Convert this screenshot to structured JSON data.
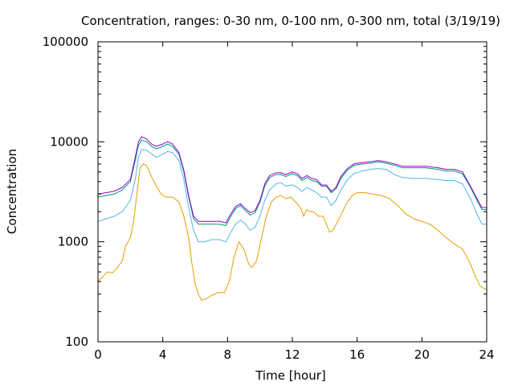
{
  "chart_data": {
    "type": "line",
    "title": "Concentration, ranges: 0-30 nm, 0-100 nm, 0-300 nm, total (3/19/19)",
    "xlabel": "Time [hour]",
    "ylabel": "Concentration",
    "xlim": [
      0,
      24
    ],
    "ylim": [
      100,
      100000
    ],
    "yscale": "log",
    "grid": false,
    "legend": "none",
    "xticks": [
      0,
      4,
      8,
      12,
      16,
      20,
      24
    ],
    "xtick_labels": [
      "0",
      "4",
      "8",
      "12",
      "16",
      "20",
      "24"
    ],
    "yticks": [
      100,
      1000,
      10000,
      100000
    ],
    "ytick_labels": [
      "100",
      "1000",
      "10000",
      "100000"
    ],
    "series": [
      {
        "color": "#e69f00",
        "points": [
          [
            0,
            400
          ],
          [
            0.3,
            450
          ],
          [
            0.6,
            500
          ],
          [
            0.9,
            490
          ],
          [
            1.2,
            550
          ],
          [
            1.5,
            650
          ],
          [
            1.7,
            900
          ],
          [
            2.0,
            1100
          ],
          [
            2.2,
            1600
          ],
          [
            2.4,
            3000
          ],
          [
            2.6,
            5500
          ],
          [
            2.8,
            6000
          ],
          [
            3.0,
            5800
          ],
          [
            3.3,
            4500
          ],
          [
            3.6,
            3600
          ],
          [
            3.9,
            3000
          ],
          [
            4.2,
            2800
          ],
          [
            4.6,
            2800
          ],
          [
            5.0,
            2500
          ],
          [
            5.3,
            1800
          ],
          [
            5.6,
            1100
          ],
          [
            5.8,
            600
          ],
          [
            6.0,
            380
          ],
          [
            6.2,
            300
          ],
          [
            6.4,
            260
          ],
          [
            6.7,
            270
          ],
          [
            7.0,
            290
          ],
          [
            7.4,
            310
          ],
          [
            7.8,
            310
          ],
          [
            8.1,
            400
          ],
          [
            8.4,
            700
          ],
          [
            8.7,
            1000
          ],
          [
            9.0,
            850
          ],
          [
            9.3,
            600
          ],
          [
            9.5,
            550
          ],
          [
            9.8,
            650
          ],
          [
            10.1,
            1100
          ],
          [
            10.4,
            1800
          ],
          [
            10.7,
            2500
          ],
          [
            11.0,
            2800
          ],
          [
            11.3,
            2900
          ],
          [
            11.6,
            2700
          ],
          [
            11.9,
            2800
          ],
          [
            12.2,
            2500
          ],
          [
            12.5,
            2200
          ],
          [
            12.7,
            1800
          ],
          [
            12.9,
            2100
          ],
          [
            13.1,
            2000
          ],
          [
            13.3,
            2000
          ],
          [
            13.6,
            1800
          ],
          [
            13.9,
            1800
          ],
          [
            14.1,
            1500
          ],
          [
            14.3,
            1250
          ],
          [
            14.5,
            1300
          ],
          [
            14.8,
            1600
          ],
          [
            15.1,
            2000
          ],
          [
            15.4,
            2500
          ],
          [
            15.7,
            2900
          ],
          [
            16.0,
            3100
          ],
          [
            16.5,
            3100
          ],
          [
            17.0,
            3000
          ],
          [
            17.5,
            2900
          ],
          [
            18.0,
            2700
          ],
          [
            18.5,
            2300
          ],
          [
            19.0,
            1900
          ],
          [
            19.5,
            1700
          ],
          [
            20.0,
            1600
          ],
          [
            20.5,
            1500
          ],
          [
            21.0,
            1300
          ],
          [
            21.5,
            1100
          ],
          [
            22.0,
            950
          ],
          [
            22.5,
            850
          ],
          [
            23.0,
            600
          ],
          [
            23.3,
            450
          ],
          [
            23.6,
            360
          ],
          [
            24.0,
            330
          ]
        ]
      },
      {
        "color": "#56b4e9",
        "points": [
          [
            0,
            1600
          ],
          [
            0.5,
            1700
          ],
          [
            1.0,
            1800
          ],
          [
            1.5,
            2000
          ],
          [
            2.0,
            2600
          ],
          [
            2.3,
            4200
          ],
          [
            2.5,
            7000
          ],
          [
            2.7,
            8400
          ],
          [
            3.0,
            8200
          ],
          [
            3.3,
            7600
          ],
          [
            3.6,
            7000
          ],
          [
            4.0,
            7500
          ],
          [
            4.3,
            8000
          ],
          [
            4.6,
            7800
          ],
          [
            5.0,
            6500
          ],
          [
            5.3,
            4200
          ],
          [
            5.6,
            2200
          ],
          [
            5.9,
            1300
          ],
          [
            6.2,
            1000
          ],
          [
            6.6,
            1000
          ],
          [
            7.0,
            1050
          ],
          [
            7.5,
            1050
          ],
          [
            7.9,
            1000
          ],
          [
            8.2,
            1250
          ],
          [
            8.5,
            1500
          ],
          [
            8.8,
            1650
          ],
          [
            9.1,
            1500
          ],
          [
            9.4,
            1300
          ],
          [
            9.7,
            1400
          ],
          [
            10.0,
            1800
          ],
          [
            10.3,
            2600
          ],
          [
            10.6,
            3300
          ],
          [
            11.0,
            3800
          ],
          [
            11.3,
            3900
          ],
          [
            11.6,
            3600
          ],
          [
            12.0,
            3700
          ],
          [
            12.3,
            3500
          ],
          [
            12.6,
            3200
          ],
          [
            12.9,
            3500
          ],
          [
            13.2,
            3300
          ],
          [
            13.5,
            3100
          ],
          [
            13.8,
            2800
          ],
          [
            14.1,
            2800
          ],
          [
            14.4,
            2300
          ],
          [
            14.7,
            2600
          ],
          [
            15.0,
            3300
          ],
          [
            15.4,
            4200
          ],
          [
            15.8,
            4800
          ],
          [
            16.3,
            5100
          ],
          [
            16.8,
            5300
          ],
          [
            17.3,
            5400
          ],
          [
            17.8,
            5300
          ],
          [
            18.3,
            4700
          ],
          [
            18.8,
            4400
          ],
          [
            19.5,
            4300
          ],
          [
            20.2,
            4300
          ],
          [
            21.0,
            4200
          ],
          [
            21.5,
            4100
          ],
          [
            22.0,
            4100
          ],
          [
            22.5,
            3800
          ],
          [
            23.0,
            2700
          ],
          [
            23.4,
            1900
          ],
          [
            23.7,
            1500
          ],
          [
            24.0,
            1500
          ]
        ]
      },
      {
        "color": "#009e73",
        "points": [
          [
            0,
            2800
          ],
          [
            0.5,
            2900
          ],
          [
            1.0,
            3000
          ],
          [
            1.5,
            3300
          ],
          [
            2.0,
            4000
          ],
          [
            2.3,
            6500
          ],
          [
            2.5,
            9200
          ],
          [
            2.7,
            10400
          ],
          [
            3.0,
            10000
          ],
          [
            3.3,
            9000
          ],
          [
            3.6,
            8500
          ],
          [
            4.0,
            9000
          ],
          [
            4.3,
            9500
          ],
          [
            4.6,
            9000
          ],
          [
            5.0,
            7500
          ],
          [
            5.3,
            5000
          ],
          [
            5.6,
            2800
          ],
          [
            5.9,
            1700
          ],
          [
            6.2,
            1500
          ],
          [
            6.6,
            1500
          ],
          [
            7.0,
            1500
          ],
          [
            7.5,
            1500
          ],
          [
            7.9,
            1450
          ],
          [
            8.2,
            1800
          ],
          [
            8.5,
            2150
          ],
          [
            8.8,
            2300
          ],
          [
            9.1,
            2050
          ],
          [
            9.4,
            1850
          ],
          [
            9.7,
            1950
          ],
          [
            10.0,
            2500
          ],
          [
            10.3,
            3600
          ],
          [
            10.6,
            4400
          ],
          [
            11.0,
            4700
          ],
          [
            11.3,
            4700
          ],
          [
            11.6,
            4500
          ],
          [
            12.0,
            4800
          ],
          [
            12.3,
            4600
          ],
          [
            12.6,
            4100
          ],
          [
            12.9,
            4400
          ],
          [
            13.2,
            4100
          ],
          [
            13.5,
            4000
          ],
          [
            13.8,
            3600
          ],
          [
            14.1,
            3600
          ],
          [
            14.4,
            3100
          ],
          [
            14.7,
            3400
          ],
          [
            15.0,
            4300
          ],
          [
            15.4,
            5200
          ],
          [
            15.8,
            5800
          ],
          [
            16.3,
            6000
          ],
          [
            16.8,
            6100
          ],
          [
            17.3,
            6300
          ],
          [
            17.8,
            6100
          ],
          [
            18.3,
            5800
          ],
          [
            18.8,
            5500
          ],
          [
            19.5,
            5500
          ],
          [
            20.2,
            5500
          ],
          [
            21.0,
            5300
          ],
          [
            21.5,
            5100
          ],
          [
            22.0,
            5100
          ],
          [
            22.5,
            4800
          ],
          [
            23.0,
            3500
          ],
          [
            23.4,
            2600
          ],
          [
            23.7,
            2100
          ],
          [
            24.0,
            2100
          ]
        ]
      },
      {
        "color": "#9400d3",
        "points": [
          [
            0,
            3000
          ],
          [
            0.5,
            3100
          ],
          [
            1.0,
            3200
          ],
          [
            1.5,
            3500
          ],
          [
            2.0,
            4200
          ],
          [
            2.3,
            7000
          ],
          [
            2.5,
            10000
          ],
          [
            2.7,
            11200
          ],
          [
            3.0,
            10700
          ],
          [
            3.3,
            9500
          ],
          [
            3.6,
            9000
          ],
          [
            4.0,
            9500
          ],
          [
            4.3,
            10000
          ],
          [
            4.6,
            9500
          ],
          [
            5.0,
            7800
          ],
          [
            5.3,
            5200
          ],
          [
            5.6,
            2900
          ],
          [
            5.9,
            1800
          ],
          [
            6.2,
            1600
          ],
          [
            6.6,
            1600
          ],
          [
            7.0,
            1600
          ],
          [
            7.5,
            1600
          ],
          [
            7.9,
            1550
          ],
          [
            8.2,
            1900
          ],
          [
            8.5,
            2250
          ],
          [
            8.8,
            2400
          ],
          [
            9.1,
            2150
          ],
          [
            9.4,
            1950
          ],
          [
            9.7,
            2050
          ],
          [
            10.0,
            2600
          ],
          [
            10.3,
            3800
          ],
          [
            10.6,
            4600
          ],
          [
            11.0,
            4900
          ],
          [
            11.3,
            4900
          ],
          [
            11.6,
            4700
          ],
          [
            12.0,
            5000
          ],
          [
            12.3,
            4800
          ],
          [
            12.6,
            4300
          ],
          [
            12.9,
            4600
          ],
          [
            13.2,
            4300
          ],
          [
            13.5,
            4200
          ],
          [
            13.8,
            3700
          ],
          [
            14.1,
            3700
          ],
          [
            14.4,
            3200
          ],
          [
            14.7,
            3500
          ],
          [
            15.0,
            4500
          ],
          [
            15.4,
            5400
          ],
          [
            15.8,
            6000
          ],
          [
            16.3,
            6200
          ],
          [
            16.8,
            6300
          ],
          [
            17.3,
            6500
          ],
          [
            17.8,
            6300
          ],
          [
            18.3,
            6000
          ],
          [
            18.8,
            5700
          ],
          [
            19.5,
            5700
          ],
          [
            20.2,
            5700
          ],
          [
            21.0,
            5500
          ],
          [
            21.5,
            5300
          ],
          [
            22.0,
            5300
          ],
          [
            22.5,
            5000
          ],
          [
            23.0,
            3600
          ],
          [
            23.4,
            2700
          ],
          [
            23.7,
            2200
          ],
          [
            24.0,
            2200
          ]
        ]
      }
    ]
  }
}
